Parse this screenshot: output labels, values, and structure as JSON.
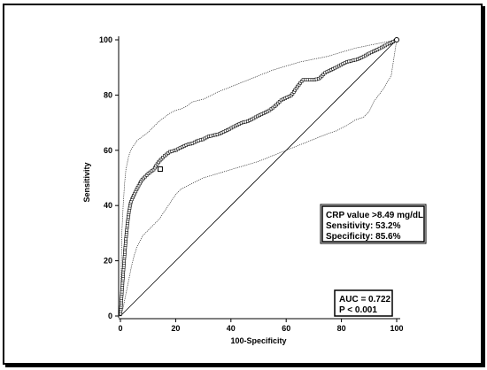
{
  "chart_data": {
    "type": "line",
    "xlabel": "100-Specificity",
    "ylabel": "Sensitivity",
    "xlim": [
      0,
      100
    ],
    "ylim": [
      0,
      100
    ],
    "xticks": [
      0,
      20,
      40,
      60,
      80,
      100
    ],
    "yticks": [
      0,
      20,
      40,
      60,
      80,
      100
    ],
    "series": [
      {
        "role": "roc",
        "x": [
          0,
          0.5,
          1,
          1.5,
          2,
          2.5,
          3,
          3.5,
          4,
          5,
          6,
          7,
          8,
          9,
          10,
          12,
          14,
          16,
          18,
          20,
          22,
          24,
          26,
          28,
          30,
          32,
          34,
          36,
          38,
          40,
          42,
          44,
          46,
          48,
          50,
          52,
          54,
          56,
          58,
          60,
          62,
          64,
          66,
          68,
          70,
          72,
          74,
          76,
          78,
          80,
          82,
          84,
          86,
          88,
          90,
          92,
          94,
          96,
          98,
          100
        ],
        "y": [
          0,
          8,
          15,
          22,
          28,
          33,
          37,
          40,
          42,
          44,
          46,
          48,
          49.5,
          50.5,
          51.5,
          53,
          56,
          58,
          59.5,
          60,
          61,
          62,
          62.5,
          63.5,
          64,
          65,
          65.5,
          66,
          67,
          68,
          69,
          70,
          70.5,
          71.5,
          72.5,
          73.5,
          74.5,
          76,
          78,
          79,
          80,
          83,
          85.5,
          85.5,
          85.5,
          86,
          88,
          89,
          90,
          91,
          92,
          92.5,
          93,
          94,
          95,
          96,
          97,
          98,
          99,
          100
        ]
      },
      {
        "role": "upper-ci",
        "x": [
          0,
          0.5,
          1,
          1.5,
          2,
          3,
          4,
          5,
          6,
          8,
          10,
          12,
          14,
          16,
          18,
          20,
          22,
          24,
          26,
          28,
          30,
          35,
          40,
          45,
          50,
          55,
          60,
          65,
          70,
          75,
          80,
          85,
          90,
          95,
          100
        ],
        "y": [
          0,
          30,
          40,
          48,
          53,
          58,
          60.5,
          62,
          63.5,
          65,
          66.5,
          68.5,
          70.5,
          72,
          73.5,
          74.5,
          75,
          76,
          77.5,
          78,
          78.5,
          81,
          83,
          85,
          87,
          89,
          90.5,
          92,
          93,
          94,
          95.5,
          97,
          98,
          99,
          100
        ]
      },
      {
        "role": "lower-ci",
        "x": [
          0,
          1,
          2,
          3,
          4,
          5,
          6,
          8,
          10,
          12,
          14,
          16,
          18,
          20,
          22,
          24,
          26,
          28,
          30,
          35,
          40,
          45,
          50,
          55,
          60,
          65,
          70,
          75,
          78,
          80,
          82,
          85,
          88,
          90,
          92,
          95,
          98,
          100
        ],
        "y": [
          0,
          3,
          8,
          13,
          18,
          22,
          25,
          29,
          31,
          33,
          35,
          38,
          41,
          44,
          46,
          47,
          48,
          49,
          50,
          51.5,
          53,
          54.5,
          56,
          58,
          60,
          62,
          64,
          66,
          67,
          68,
          69,
          71,
          72,
          74,
          78,
          82,
          87,
          100
        ]
      },
      {
        "role": "diagonal",
        "x": [
          0,
          100
        ],
        "y": [
          0,
          100
        ]
      }
    ],
    "annotations": {
      "threshold_box": {
        "line1": "CRP value >8.49 mg/dL",
        "line2": "Sensitivity: 53.2%",
        "line3": "Specificity: 85.6%",
        "location": "right-middle"
      },
      "auc_box": {
        "line1": "AUC = 0.722",
        "line2": "P < 0.001",
        "location": "bottom-right"
      },
      "optimal_point": {
        "x": 14.4,
        "y": 53.2
      }
    },
    "grid": false
  }
}
